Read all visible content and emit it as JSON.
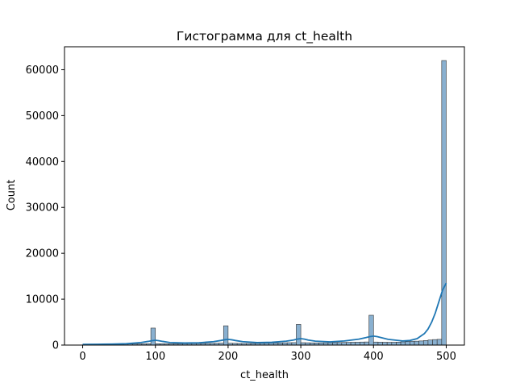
{
  "chart_data": {
    "type": "bar",
    "title": "Гистограмма для ct_health",
    "xlabel": "ct_health",
    "ylabel": "Count",
    "xlim": [
      -25,
      525
    ],
    "ylim": [
      0,
      65000
    ],
    "x_ticks": [
      0,
      100,
      200,
      300,
      400,
      500
    ],
    "y_ticks": [
      0,
      10000,
      20000,
      30000,
      40000,
      50000,
      60000
    ],
    "x_tick_labels": [
      "0",
      "100",
      "200",
      "300",
      "400",
      "500"
    ],
    "y_tick_labels": [
      "0",
      "10000",
      "20000",
      "30000",
      "40000",
      "50000",
      "60000"
    ],
    "bin_width": 6.25,
    "bin_start": 0,
    "series": [
      {
        "bar_color": "#89b0d0",
        "edge_color": "#333333",
        "line_color": "#1f77b4",
        "values": [
          80,
          90,
          100,
          110,
          120,
          140,
          150,
          170,
          190,
          210,
          230,
          250,
          260,
          280,
          290,
          3700,
          300,
          290,
          280,
          270,
          280,
          290,
          300,
          320,
          340,
          350,
          360,
          370,
          380,
          400,
          420,
          4200,
          400,
          380,
          360,
          350,
          360,
          370,
          380,
          400,
          420,
          440,
          460,
          480,
          500,
          520,
          540,
          4500,
          520,
          500,
          480,
          470,
          480,
          500,
          520,
          540,
          560,
          580,
          600,
          620,
          640,
          660,
          680,
          6500,
          660,
          640,
          620,
          610,
          620,
          650,
          700,
          750,
          800,
          850,
          900,
          1000,
          1100,
          1200,
          1250,
          62000
        ],
        "kde": {
          "x": [
            0,
            20,
            40,
            60,
            80,
            90,
            95,
            100,
            105,
            110,
            120,
            140,
            160,
            180,
            190,
            195,
            200,
            205,
            210,
            220,
            240,
            260,
            280,
            290,
            295,
            300,
            305,
            310,
            320,
            340,
            360,
            380,
            390,
            395,
            400,
            405,
            410,
            420,
            440,
            450,
            460,
            470,
            475,
            480,
            485,
            490,
            495,
            500
          ],
          "y": [
            150,
            170,
            210,
            300,
            550,
            800,
            950,
            1050,
            950,
            800,
            550,
            450,
            500,
            750,
            1000,
            1150,
            1250,
            1150,
            1000,
            750,
            550,
            600,
            850,
            1100,
            1300,
            1400,
            1300,
            1100,
            850,
            700,
            900,
            1300,
            1650,
            1850,
            1950,
            1850,
            1650,
            1250,
            900,
            1000,
            1400,
            2500,
            3500,
            5000,
            7000,
            9500,
            12000,
            13500
          ]
        }
      }
    ]
  }
}
